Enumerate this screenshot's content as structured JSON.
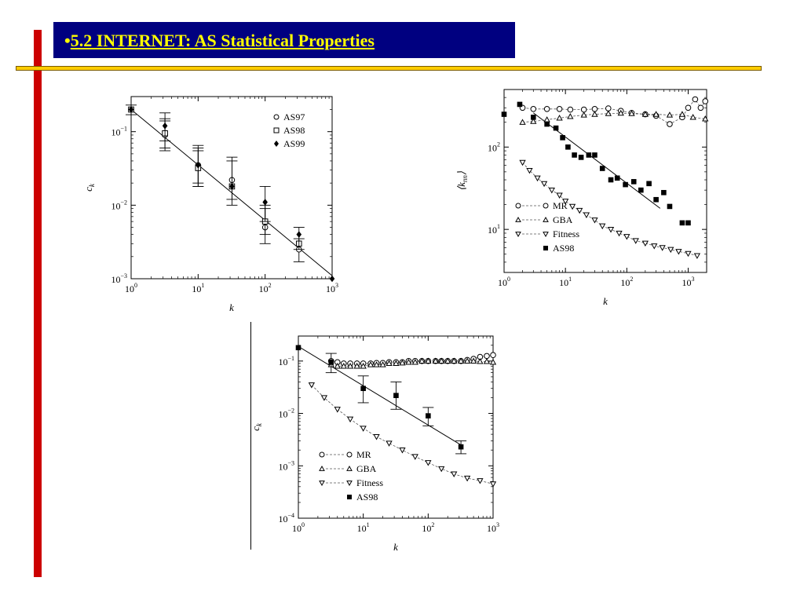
{
  "slide": {
    "bullet": "•",
    "title": "5.2 INTERNET: AS Statistical Properties"
  },
  "chart_data": [
    {
      "type": "scatter",
      "xscale": "log",
      "yscale": "log",
      "xlim": [
        1,
        1000
      ],
      "ylim": [
        0.001,
        0.3
      ],
      "xlabel": "k",
      "ylabel": "c_k",
      "xticks": [
        {
          "v": 1,
          "e": "0"
        },
        {
          "v": 10,
          "e": "1"
        },
        {
          "v": 100,
          "e": "2"
        },
        {
          "v": 1000,
          "e": "3"
        }
      ],
      "yticks": [
        {
          "v": 0.001,
          "e": "−3"
        },
        {
          "v": 0.01,
          "e": "−2"
        },
        {
          "v": 0.1,
          "e": "−1"
        }
      ],
      "legend_position": "top-right",
      "series": [
        {
          "name": "AS97",
          "marker": "circle-open",
          "points": [
            [
              1,
              0.2
            ],
            [
              3.2,
              0.09
            ],
            [
              10,
              0.035
            ],
            [
              32,
              0.022
            ],
            [
              100,
              0.005
            ],
            [
              320,
              0.0025
            ]
          ],
          "errors": [
            [
              1,
              0.17,
              0.23
            ],
            [
              3.2,
              0.055,
              0.14
            ],
            [
              10,
              0.018,
              0.065
            ],
            [
              32,
              0.01,
              0.045
            ],
            [
              100,
              0.003,
              0.009
            ],
            [
              320,
              0.0017,
              0.0035
            ]
          ]
        },
        {
          "name": "AS98",
          "marker": "square-open",
          "points": [
            [
              1,
              0.2
            ],
            [
              3.2,
              0.095
            ],
            [
              10,
              0.032
            ],
            [
              32,
              0.018
            ],
            [
              100,
              0.006
            ],
            [
              320,
              0.003
            ]
          ],
          "errors": [
            [
              3.2,
              0.06,
              0.15
            ],
            [
              10,
              0.018,
              0.055
            ],
            [
              32,
              0.012,
              0.04
            ],
            [
              100,
              0.004,
              0.01
            ]
          ]
        },
        {
          "name": "AS99",
          "marker": "diamond-filled",
          "points": [
            [
              1,
              0.2
            ],
            [
              3.2,
              0.12
            ],
            [
              10,
              0.035
            ],
            [
              32,
              0.018
            ],
            [
              100,
              0.011
            ],
            [
              320,
              0.004
            ],
            [
              1000,
              0.001
            ]
          ],
          "errors": [
            [
              3.2,
              0.075,
              0.18
            ],
            [
              10,
              0.02,
              0.06
            ],
            [
              100,
              0.006,
              0.018
            ],
            [
              320,
              0.0025,
              0.005
            ]
          ]
        }
      ],
      "fit_line": [
        [
          1,
          0.2
        ],
        [
          1000,
          0.0011
        ]
      ]
    },
    {
      "type": "scatter",
      "xscale": "log",
      "yscale": "log",
      "xlim": [
        1,
        2000
      ],
      "ylim": [
        3,
        500
      ],
      "xlabel": "k",
      "ylabel": "⟨k_nn⟩",
      "xticks": [
        {
          "v": 1,
          "e": "0"
        },
        {
          "v": 10,
          "e": "1"
        },
        {
          "v": 100,
          "e": "2"
        },
        {
          "v": 1000,
          "e": "3"
        }
      ],
      "yticks": [
        {
          "v": 10,
          "e": "1"
        },
        {
          "v": 100,
          "e": "2"
        }
      ],
      "legend_position": "bottom-left",
      "series": [
        {
          "name": "MR",
          "marker": "circle-open",
          "line": "dashed",
          "points": [
            [
              2,
              300
            ],
            [
              3,
              290
            ],
            [
              5,
              290
            ],
            [
              8,
              290
            ],
            [
              12,
              285
            ],
            [
              20,
              285
            ],
            [
              30,
              290
            ],
            [
              50,
              295
            ],
            [
              80,
              275
            ],
            [
              120,
              260
            ],
            [
              200,
              250
            ],
            [
              300,
              240
            ],
            [
              500,
              190
            ],
            [
              800,
              230
            ],
            [
              1000,
              300
            ],
            [
              1300,
              380
            ],
            [
              1600,
              300
            ],
            [
              1900,
              360
            ]
          ]
        },
        {
          "name": "GBA",
          "marker": "triangle-up-open",
          "line": "dashed",
          "points": [
            [
              2,
              200
            ],
            [
              3,
              205
            ],
            [
              5,
              215
            ],
            [
              8,
              225
            ],
            [
              12,
              235
            ],
            [
              20,
              245
            ],
            [
              30,
              250
            ],
            [
              50,
              255
            ],
            [
              80,
              258
            ],
            [
              120,
              255
            ],
            [
              200,
              250
            ],
            [
              300,
              250
            ],
            [
              500,
              245
            ],
            [
              800,
              250
            ],
            [
              1200,
              230
            ],
            [
              1900,
              220
            ]
          ]
        },
        {
          "name": "Fitness",
          "marker": "triangle-down-open",
          "line": "dashed",
          "points": [
            [
              2,
              65
            ],
            [
              2.6,
              52
            ],
            [
              3.5,
              42
            ],
            [
              4.5,
              36
            ],
            [
              6,
              30
            ],
            [
              8,
              26
            ],
            [
              10,
              22
            ],
            [
              13,
              19
            ],
            [
              17,
              17
            ],
            [
              22,
              15
            ],
            [
              30,
              13
            ],
            [
              40,
              11
            ],
            [
              55,
              10
            ],
            [
              75,
              9
            ],
            [
              100,
              8.2
            ],
            [
              140,
              7.3
            ],
            [
              200,
              6.8
            ],
            [
              280,
              6.3
            ],
            [
              380,
              6
            ],
            [
              520,
              5.7
            ],
            [
              700,
              5.4
            ],
            [
              1000,
              5.1
            ],
            [
              1400,
              4.8
            ]
          ]
        },
        {
          "name": "AS98",
          "marker": "square-filled",
          "points": [
            [
              1,
              250
            ],
            [
              1.8,
              330
            ],
            [
              3,
              230
            ],
            [
              5,
              190
            ],
            [
              7,
              170
            ],
            [
              9,
              130
            ],
            [
              11,
              100
            ],
            [
              14,
              80
            ],
            [
              18,
              75
            ],
            [
              24,
              80
            ],
            [
              30,
              80
            ],
            [
              40,
              55
            ],
            [
              55,
              40
            ],
            [
              70,
              42
            ],
            [
              95,
              35
            ],
            [
              130,
              38
            ],
            [
              170,
              30
            ],
            [
              230,
              36
            ],
            [
              300,
              23
            ],
            [
              400,
              28
            ],
            [
              500,
              19
            ],
            [
              800,
              12
            ],
            [
              1000,
              12
            ]
          ]
        }
      ],
      "fit_line": [
        [
          3,
          260
        ],
        [
          350,
          18
        ]
      ]
    },
    {
      "type": "scatter",
      "xscale": "log",
      "yscale": "log",
      "xlim": [
        1,
        1000
      ],
      "ylim": [
        0.0001,
        0.3
      ],
      "xlabel": "k",
      "ylabel": "c_k",
      "xticks": [
        {
          "v": 1,
          "e": "0"
        },
        {
          "v": 10,
          "e": "1"
        },
        {
          "v": 100,
          "e": "2"
        },
        {
          "v": 1000,
          "e": "3"
        }
      ],
      "yticks": [
        {
          "v": 0.0001,
          "e": "−4"
        },
        {
          "v": 0.001,
          "e": "−3"
        },
        {
          "v": 0.01,
          "e": "−2"
        },
        {
          "v": 0.1,
          "e": "−1"
        }
      ],
      "legend_position": "bottom-left",
      "series": [
        {
          "name": "MR",
          "marker": "circle-open",
          "line": "dashed",
          "points": [
            [
              3.2,
              0.1
            ],
            [
              4,
              0.095
            ],
            [
              5,
              0.09
            ],
            [
              6.3,
              0.09
            ],
            [
              8,
              0.09
            ],
            [
              10,
              0.09
            ],
            [
              13,
              0.09
            ],
            [
              16,
              0.092
            ],
            [
              20,
              0.092
            ],
            [
              25,
              0.095
            ],
            [
              32,
              0.095
            ],
            [
              40,
              0.095
            ],
            [
              50,
              0.1
            ],
            [
              63,
              0.1
            ],
            [
              80,
              0.1
            ],
            [
              100,
              0.1
            ],
            [
              130,
              0.1
            ],
            [
              160,
              0.1
            ],
            [
              200,
              0.1
            ],
            [
              250,
              0.1
            ],
            [
              320,
              0.1
            ],
            [
              400,
              0.105
            ],
            [
              500,
              0.11
            ],
            [
              630,
              0.12
            ],
            [
              800,
              0.125
            ],
            [
              1000,
              0.13
            ]
          ]
        },
        {
          "name": "GBA",
          "marker": "triangle-up-open",
          "line": "dashed",
          "points": [
            [
              3.2,
              0.085
            ],
            [
              4,
              0.08
            ],
            [
              5,
              0.08
            ],
            [
              6.3,
              0.08
            ],
            [
              8,
              0.08
            ],
            [
              10,
              0.08
            ],
            [
              13,
              0.085
            ],
            [
              16,
              0.085
            ],
            [
              20,
              0.085
            ],
            [
              25,
              0.09
            ],
            [
              32,
              0.09
            ],
            [
              40,
              0.092
            ],
            [
              50,
              0.095
            ],
            [
              63,
              0.095
            ],
            [
              80,
              0.1
            ],
            [
              100,
              0.1
            ],
            [
              130,
              0.1
            ],
            [
              160,
              0.1
            ],
            [
              200,
              0.1
            ],
            [
              250,
              0.1
            ],
            [
              320,
              0.1
            ],
            [
              400,
              0.1
            ],
            [
              500,
              0.1
            ],
            [
              630,
              0.098
            ],
            [
              800,
              0.098
            ],
            [
              1000,
              0.095
            ]
          ]
        },
        {
          "name": "Fitness",
          "marker": "triangle-down-open",
          "line": "dashed",
          "points": [
            [
              1.6,
              0.035
            ],
            [
              2.5,
              0.02
            ],
            [
              4,
              0.012
            ],
            [
              6.3,
              0.0078
            ],
            [
              10,
              0.0052
            ],
            [
              16,
              0.0036
            ],
            [
              25,
              0.0027
            ],
            [
              40,
              0.002
            ],
            [
              63,
              0.0015
            ],
            [
              100,
              0.00115
            ],
            [
              160,
              0.00088
            ],
            [
              250,
              0.0007
            ],
            [
              400,
              0.00058
            ],
            [
              630,
              0.00052
            ],
            [
              1000,
              0.00045
            ]
          ]
        },
        {
          "name": "AS98",
          "marker": "square-filled",
          "points": [
            [
              1,
              0.18
            ],
            [
              3.2,
              0.095
            ],
            [
              10,
              0.03
            ],
            [
              32,
              0.022
            ],
            [
              100,
              0.009
            ],
            [
              320,
              0.0023
            ]
          ],
          "errors": [
            [
              3.2,
              0.06,
              0.14
            ],
            [
              10,
              0.016,
              0.052
            ],
            [
              32,
              0.012,
              0.04
            ],
            [
              100,
              0.0058,
              0.013
            ],
            [
              320,
              0.0017,
              0.003
            ]
          ]
        }
      ],
      "fit_line": [
        [
          1,
          0.19
        ],
        [
          320,
          0.0025
        ]
      ]
    }
  ]
}
